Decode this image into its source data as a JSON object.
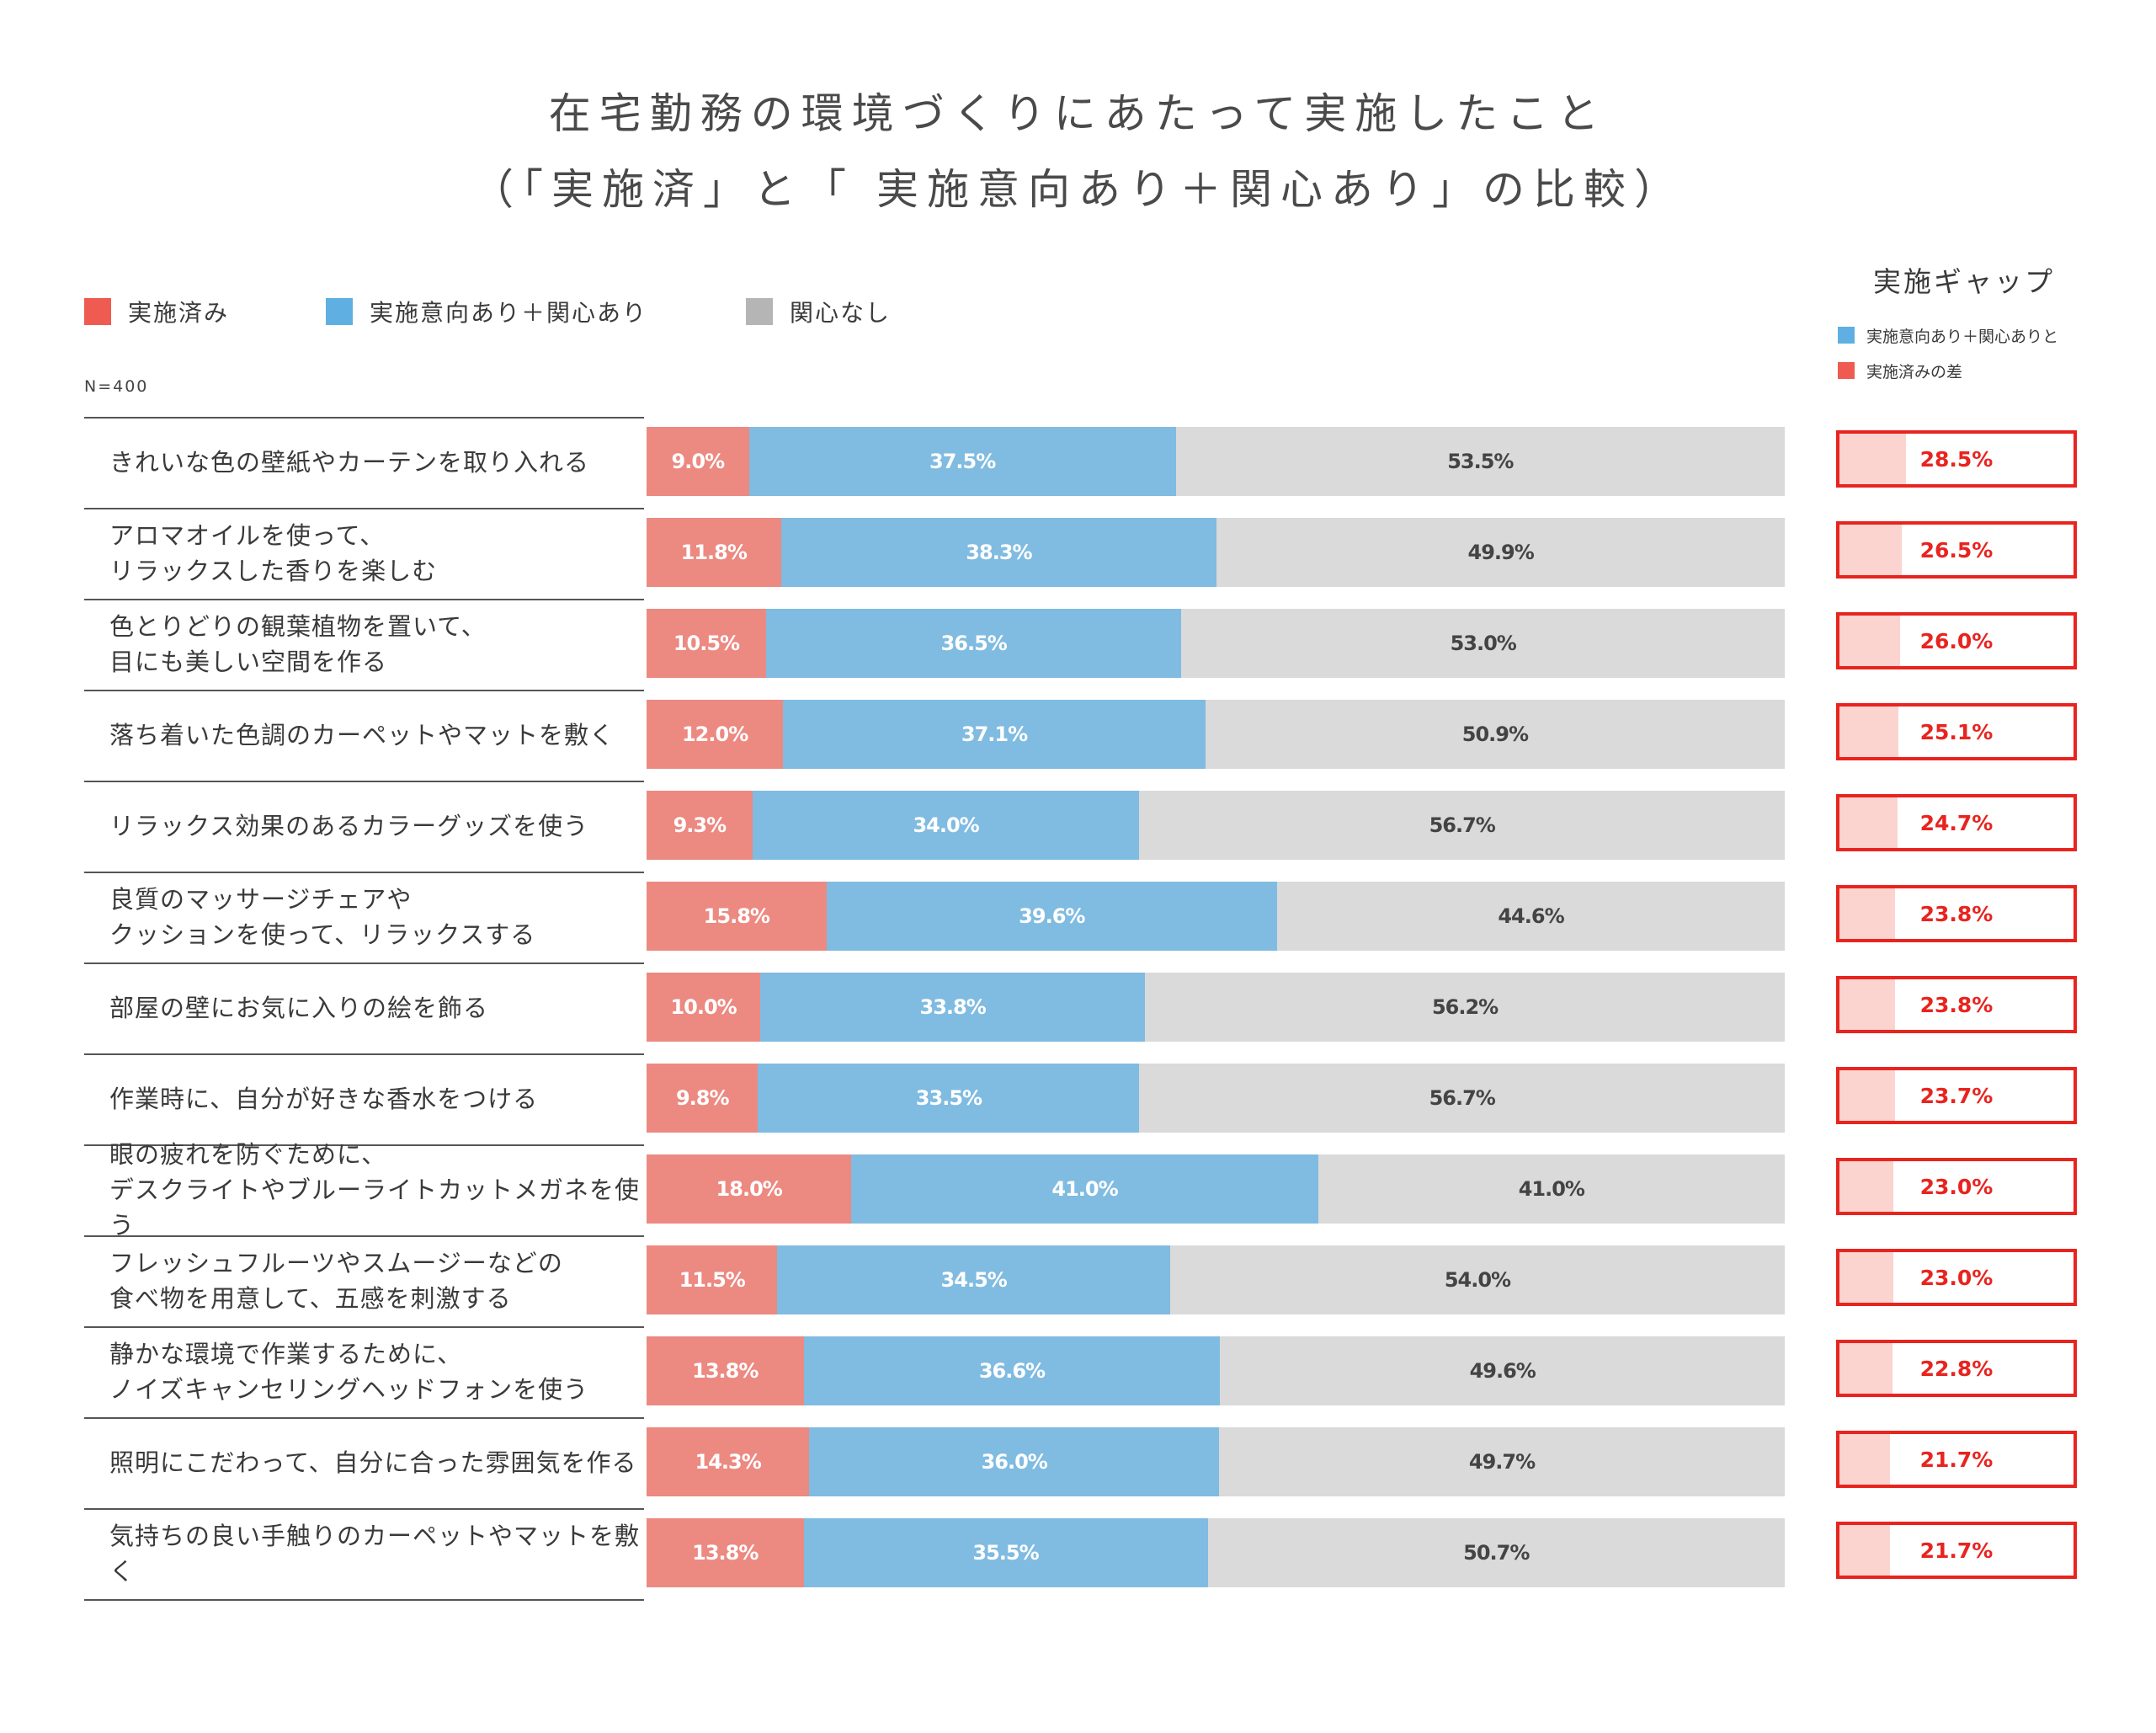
{
  "title_line1": "在宅勤務の環境づくりにあたって実施したこと",
  "title_line2": "（「実施済」と「 実施意向あり＋関心あり」の比較）",
  "legend": [
    {
      "label": "実施済み",
      "color": "#ef5b50"
    },
    {
      "label": "実施意向あり＋関心あり",
      "color": "#5fafe2"
    },
    {
      "label": "関心なし",
      "color": "#b5b5b5"
    }
  ],
  "sample_label": "N=400",
  "gap_panel": {
    "title": "実施ギャップ",
    "legend": [
      {
        "label": "実施意向あり＋関心ありと",
        "color": "#5fafe2"
      },
      {
        "label": "実施済みの差",
        "color": "#ef5b50"
      }
    ]
  },
  "colors": {
    "done_bar": "#ec8981",
    "interest_bar": "#80bbe1",
    "none_bar": "#dadada",
    "gap_border": "#e8241f",
    "gap_fill": "#fbd3cf"
  },
  "chart_data": {
    "type": "bar",
    "orientation": "horizontal",
    "stacked": true,
    "percent_suffix": "%",
    "categories": [
      "きれいな色の壁紙やカーテンを取り入れる",
      "アロマオイルを使って、\nリラックスした香りを楽しむ",
      "色とりどりの観葉植物を置いて、\n目にも美しい空間を作る",
      "落ち着いた色調のカーペットやマットを敷く",
      "リラックス効果のあるカラーグッズを使う",
      "良質のマッサージチェアや\nクッションを使って、リラックスする",
      "部屋の壁にお気に入りの絵を飾る",
      "作業時に、自分が好きな香水をつける",
      "眼の疲れを防ぐために、\nデスクライトやブルーライトカットメガネを使う",
      "フレッシュフルーツやスムージーなどの\n食べ物を用意して、五感を刺激する",
      "静かな環境で作業するために、\nノイズキャンセリングヘッドフォンを使う",
      "照明にこだわって、自分に合った雰囲気を作る",
      "気持ちの良い手触りのカーペットやマットを敷く"
    ],
    "series": [
      {
        "name": "実施済み",
        "values": [
          9.0,
          11.8,
          10.5,
          12.0,
          9.3,
          15.8,
          10.0,
          9.8,
          18.0,
          11.5,
          13.8,
          14.3,
          13.8
        ]
      },
      {
        "name": "実施意向あり＋関心あり",
        "values": [
          37.5,
          38.3,
          36.5,
          37.1,
          34.0,
          39.6,
          33.8,
          33.5,
          41.0,
          34.5,
          36.6,
          36.0,
          35.5
        ]
      },
      {
        "name": "関心なし",
        "values": [
          53.5,
          49.9,
          53.0,
          50.9,
          56.7,
          44.6,
          56.2,
          56.7,
          41.0,
          54.0,
          49.6,
          49.7,
          50.7
        ]
      }
    ],
    "gap": [
      28.5,
      26.5,
      26.0,
      25.1,
      24.7,
      23.8,
      23.8,
      23.7,
      23.0,
      23.0,
      22.8,
      21.7,
      21.7
    ],
    "xlim": [
      0,
      100
    ]
  }
}
